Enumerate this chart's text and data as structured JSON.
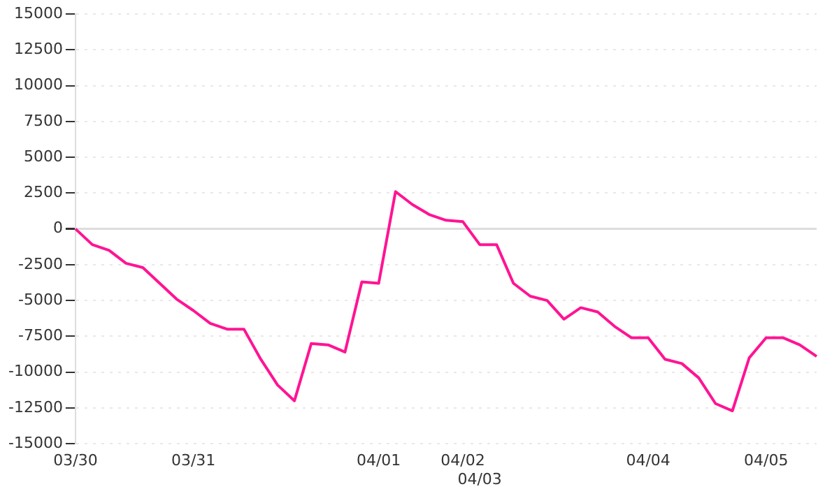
{
  "chart_data": {
    "type": "line",
    "categories": [
      "03/30",
      null,
      null,
      null,
      null,
      null,
      null,
      "03/31",
      null,
      null,
      null,
      null,
      null,
      null,
      null,
      null,
      null,
      null,
      "04/01",
      null,
      null,
      null,
      null,
      "04/02",
      "04/03",
      null,
      null,
      null,
      null,
      null,
      null,
      null,
      null,
      null,
      "04/04",
      null,
      null,
      null,
      null,
      null,
      null,
      "04/05",
      null,
      null,
      null
    ],
    "series": [
      {
        "color": "#ff1493",
        "values": [
          0,
          -1100,
          -1500,
          -2400,
          -2700,
          -3800,
          -4900,
          -5700,
          -6600,
          -7000,
          -7000,
          -9100,
          -10900,
          -12000,
          -8000,
          -8100,
          -8600,
          -3700,
          -3800,
          2600,
          1700,
          1000,
          600,
          500,
          -1100,
          -1100,
          -3800,
          -4700,
          -5000,
          -6300,
          -5500,
          -5800,
          -6800,
          -7600,
          -7600,
          -9100,
          -9400,
          -10400,
          -12200,
          -12700,
          -9000,
          -7600,
          -7600,
          -8100,
          -8900
        ]
      }
    ],
    "ylim": [
      -15000,
      15000
    ],
    "yticks": [
      -15000,
      -12500,
      -10000,
      -7500,
      -5000,
      -2500,
      0,
      2500,
      5000,
      7500,
      10000,
      12500,
      15000
    ],
    "grid": "y",
    "legend": false,
    "marker": "none",
    "line_style": "solid"
  }
}
